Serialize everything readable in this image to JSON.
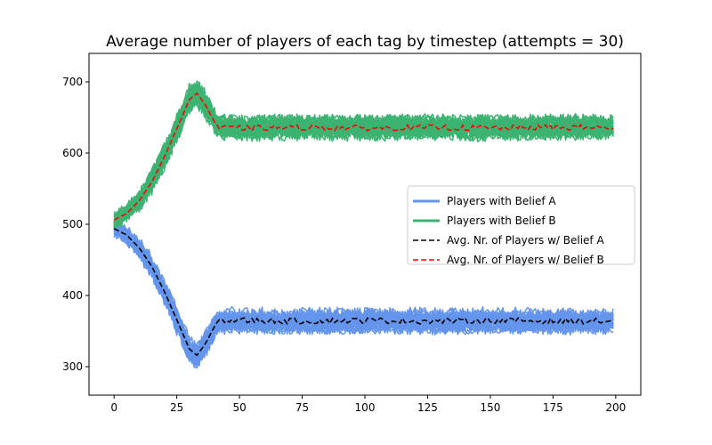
{
  "chart_data": {
    "type": "line",
    "title": "Average number of players of each tag by timestep (attempts = 30)",
    "xlabel": "",
    "ylabel": "",
    "xlim": [
      -10,
      210
    ],
    "ylim": [
      260,
      740
    ],
    "x_ticks": [
      0,
      25,
      50,
      75,
      100,
      125,
      150,
      175,
      200
    ],
    "y_ticks": [
      300,
      400,
      500,
      600,
      700
    ],
    "grid": false,
    "legend_position": "right",
    "attempts": 30,
    "timesteps": 200,
    "colors": {
      "belief_a": "#6495ed",
      "belief_b": "#3cb371",
      "avg_a": "#000000",
      "avg_b": "#ff0000"
    },
    "series": [
      {
        "name": "Players with Belief A",
        "style": "solid",
        "band": "individual attempts",
        "x": [
          0,
          5,
          10,
          15,
          20,
          25,
          30,
          33,
          36,
          40,
          42,
          50,
          75,
          100,
          125,
          150,
          175,
          199
        ],
        "values": [
          494,
          485,
          467,
          441,
          406,
          366,
          325,
          316,
          330,
          356,
          365,
          365,
          364,
          365,
          364,
          365,
          364,
          364
        ],
        "spread": [
          15,
          17,
          20,
          22,
          24,
          25,
          26,
          26,
          25,
          24,
          23,
          22,
          22,
          22,
          22,
          22,
          22,
          22
        ]
      },
      {
        "name": "Players with Belief B",
        "style": "solid",
        "band": "individual attempts",
        "x": [
          0,
          5,
          10,
          15,
          20,
          25,
          30,
          33,
          36,
          40,
          42,
          50,
          75,
          100,
          125,
          150,
          175,
          199
        ],
        "values": [
          506,
          515,
          533,
          559,
          594,
          634,
          675,
          684,
          670,
          644,
          635,
          635,
          636,
          635,
          636,
          635,
          636,
          636
        ],
        "spread": [
          15,
          17,
          20,
          22,
          24,
          25,
          26,
          26,
          25,
          24,
          23,
          22,
          22,
          22,
          22,
          22,
          22,
          22
        ]
      },
      {
        "name": "Avg. Nr. of Players w/ Belief A",
        "style": "dashed",
        "x": [
          0,
          5,
          10,
          15,
          20,
          25,
          30,
          33,
          36,
          40,
          42,
          50,
          75,
          100,
          125,
          150,
          175,
          199
        ],
        "values": [
          494,
          485,
          467,
          441,
          406,
          366,
          325,
          316,
          330,
          356,
          365,
          365,
          364,
          365,
          364,
          365,
          364,
          364
        ]
      },
      {
        "name": "Avg. Nr. of Players w/ Belief B",
        "style": "dashed",
        "x": [
          0,
          5,
          10,
          15,
          20,
          25,
          30,
          33,
          36,
          40,
          42,
          50,
          75,
          100,
          125,
          150,
          175,
          199
        ],
        "values": [
          506,
          515,
          533,
          559,
          594,
          634,
          675,
          684,
          670,
          644,
          635,
          635,
          636,
          635,
          636,
          635,
          636,
          636
        ]
      }
    ]
  }
}
